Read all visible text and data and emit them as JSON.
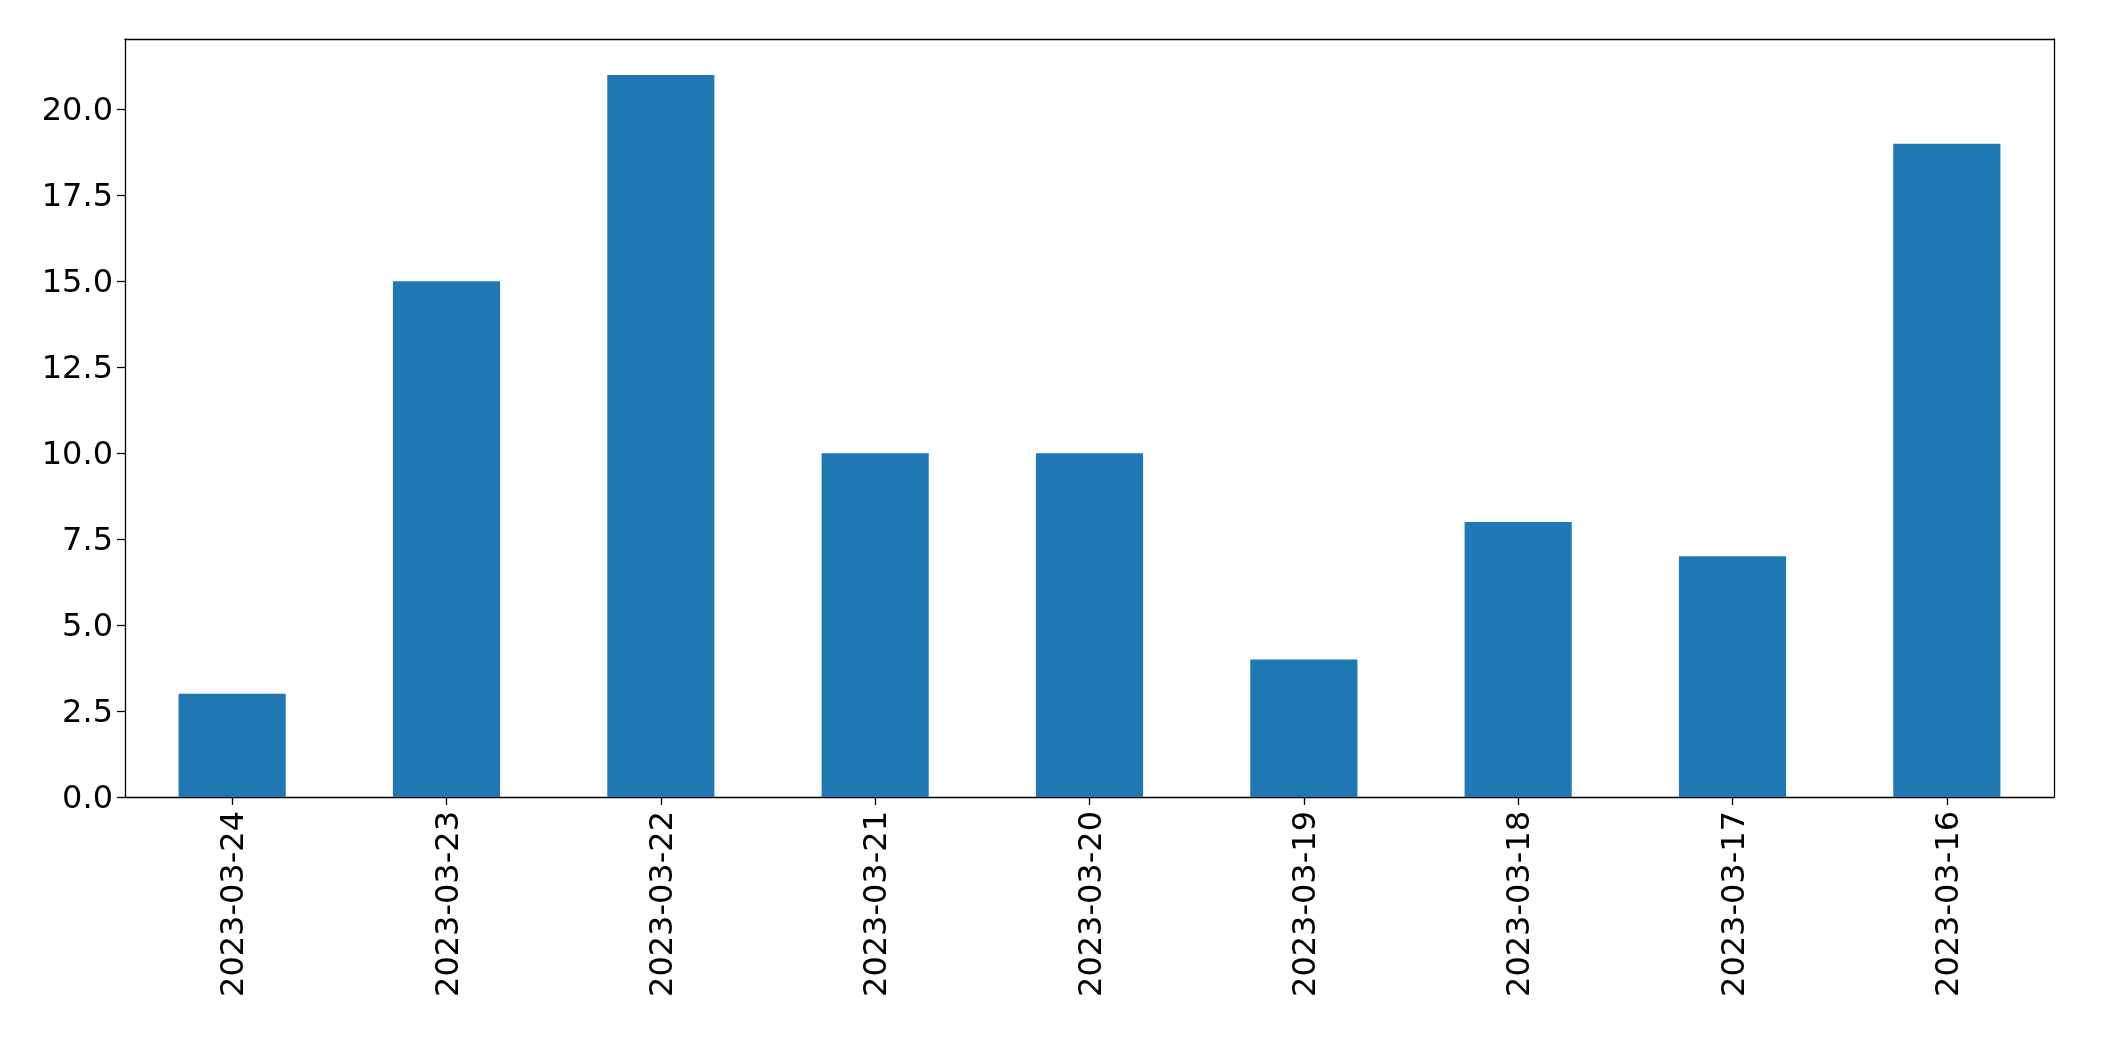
{
  "chart_data": {
    "type": "bar",
    "categories": [
      "2023-03-24",
      "2023-03-23",
      "2023-03-22",
      "2023-03-21",
      "2023-03-20",
      "2023-03-19",
      "2023-03-18",
      "2023-03-17",
      "2023-03-16"
    ],
    "values": [
      3,
      15,
      21,
      10,
      10,
      4,
      8,
      7,
      19
    ],
    "color": "#1f77b4",
    "ylim": [
      0,
      22.05
    ],
    "yticks": [
      {
        "value": 0,
        "label": "0.0"
      },
      {
        "value": 2.5,
        "label": "2.5"
      },
      {
        "value": 5,
        "label": "5.0"
      },
      {
        "value": 7.5,
        "label": "7.5"
      },
      {
        "value": 10,
        "label": "10.0"
      },
      {
        "value": 12.5,
        "label": "12.5"
      },
      {
        "value": 15,
        "label": "15.0"
      },
      {
        "value": 17.5,
        "label": "17.5"
      },
      {
        "value": 20,
        "label": "20.0"
      }
    ],
    "grid": false
  }
}
